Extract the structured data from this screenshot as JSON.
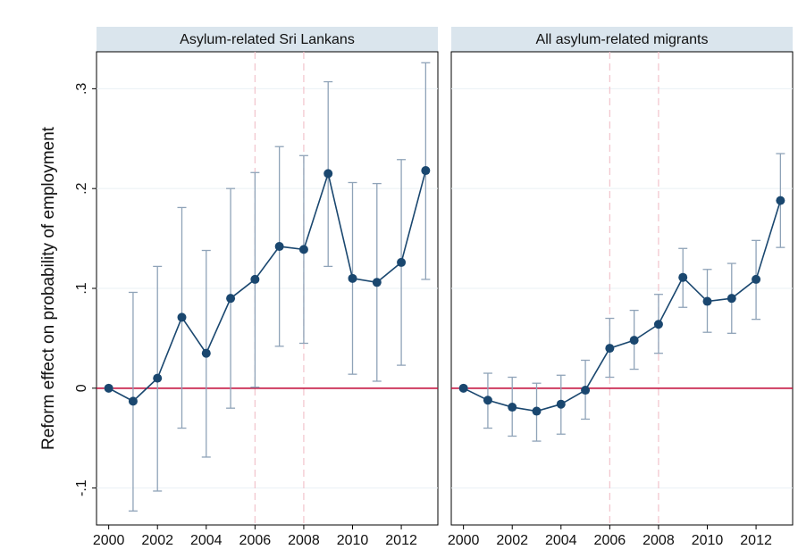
{
  "chart_data": [
    {
      "type": "line",
      "title": "Asylum-related Sri Lankans",
      "y_label": "Reform effect on probability of employment",
      "x": [
        2000,
        2001,
        2002,
        2003,
        2004,
        2005,
        2006,
        2007,
        2008,
        2009,
        2010,
        2011,
        2012,
        2013
      ],
      "values": [
        0,
        -0.013,
        0.01,
        0.071,
        0.035,
        0.09,
        0.109,
        0.142,
        0.139,
        0.215,
        0.11,
        0.106,
        0.126,
        0.218
      ],
      "ci_low": [
        0,
        -0.123,
        -0.103,
        -0.04,
        -0.069,
        -0.02,
        0.001,
        0.042,
        0.045,
        0.122,
        0.014,
        0.007,
        0.023,
        0.109
      ],
      "ci_high": [
        0,
        0.096,
        0.122,
        0.181,
        0.138,
        0.2,
        0.216,
        0.242,
        0.233,
        0.307,
        0.206,
        0.205,
        0.229,
        0.326
      ],
      "color": "#1a476f",
      "ci_color": "#8fa3b8",
      "hline": 0,
      "hline_color": "#c10534",
      "vlines": [
        2006,
        2008
      ],
      "vline_color": "#f2c3cc",
      "xlim": [
        1999.5,
        2013.5
      ],
      "xticks": [
        2000,
        2002,
        2004,
        2006,
        2008,
        2010,
        2012
      ],
      "ylim": [
        -0.137,
        0.337
      ],
      "yticks": [
        {
          "value": -0.1,
          "label": "-.1"
        },
        0,
        {
          "value": 0.1,
          "label": ".1"
        },
        {
          "value": 0.2,
          "label": ".2"
        },
        {
          "value": 0.3,
          "label": ".3"
        }
      ],
      "grid": true
    },
    {
      "type": "line",
      "title": "All asylum-related migrants",
      "x": [
        2000,
        2001,
        2002,
        2003,
        2004,
        2005,
        2006,
        2007,
        2008,
        2009,
        2010,
        2011,
        2012,
        2013
      ],
      "values": [
        0,
        -0.012,
        -0.019,
        -0.023,
        -0.016,
        -0.002,
        0.04,
        0.048,
        0.064,
        0.111,
        0.087,
        0.09,
        0.109,
        0.188
      ],
      "ci_low": [
        0,
        -0.04,
        -0.048,
        -0.053,
        -0.046,
        -0.031,
        0.011,
        0.019,
        0.035,
        0.081,
        0.056,
        0.055,
        0.069,
        0.141
      ],
      "ci_high": [
        0,
        0.015,
        0.011,
        0.005,
        0.013,
        0.028,
        0.07,
        0.078,
        0.094,
        0.14,
        0.119,
        0.125,
        0.148,
        0.235
      ],
      "color": "#1a476f",
      "ci_color": "#8fa3b8",
      "hline": 0,
      "hline_color": "#c10534",
      "vlines": [
        2006,
        2008
      ],
      "vline_color": "#f2c3cc",
      "xlim": [
        1999.5,
        2013.5
      ],
      "xticks": [
        2000,
        2002,
        2004,
        2006,
        2008,
        2010,
        2012
      ],
      "ylim": [
        -0.137,
        0.337
      ],
      "yticks": [
        -0.1,
        0,
        0.1,
        0.2,
        0.3
      ],
      "grid": true
    }
  ]
}
